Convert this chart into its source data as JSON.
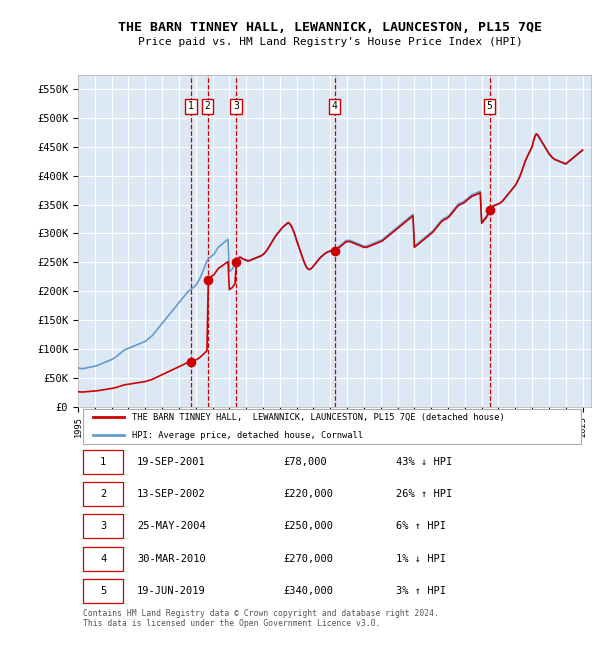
{
  "title": "THE BARN TINNEY HALL, LEWANNICK, LAUNCESTON, PL15 7QE",
  "subtitle": "Price paid vs. HM Land Registry's House Price Index (HPI)",
  "plot_bg_color": "#dce9f5",
  "ylim": [
    0,
    575000
  ],
  "yticks": [
    0,
    50000,
    100000,
    150000,
    200000,
    250000,
    300000,
    350000,
    400000,
    450000,
    500000,
    550000
  ],
  "ytick_labels": [
    "£0",
    "£50K",
    "£100K",
    "£150K",
    "£200K",
    "£250K",
    "£300K",
    "£350K",
    "£400K",
    "£450K",
    "£500K",
    "£550K"
  ],
  "xlim_start": 1995.0,
  "xlim_end": 2025.5,
  "sale_dates_x": [
    2001.72,
    2002.71,
    2004.4,
    2010.25,
    2019.47
  ],
  "sale_prices_y": [
    78000,
    220000,
    250000,
    270000,
    340000
  ],
  "sale_labels": [
    "1",
    "2",
    "3",
    "4",
    "5"
  ],
  "vline_color": "#cc0000",
  "marker_color": "#cc0000",
  "sale_line_color": "#cc0000",
  "hpi_line_color": "#6699cc",
  "legend_entries": [
    "THE BARN TINNEY HALL,  LEWANNICK, LAUNCESTON, PL15 7QE (detached house)",
    "HPI: Average price, detached house, Cornwall"
  ],
  "table_rows": [
    [
      "1",
      "19-SEP-2001",
      "£78,000",
      "43% ↓ HPI"
    ],
    [
      "2",
      "13-SEP-2002",
      "£220,000",
      "26% ↑ HPI"
    ],
    [
      "3",
      "25-MAY-2004",
      "£250,000",
      "6% ↑ HPI"
    ],
    [
      "4",
      "30-MAR-2010",
      "£270,000",
      "1% ↓ HPI"
    ],
    [
      "5",
      "19-JUN-2019",
      "£340,000",
      "3% ↑ HPI"
    ]
  ],
  "footnote": "Contains HM Land Registry data © Crown copyright and database right 2024.\nThis data is licensed under the Open Government Licence v3.0.",
  "hpi_x": [
    1995.0,
    1995.083,
    1995.167,
    1995.25,
    1995.333,
    1995.417,
    1995.5,
    1995.583,
    1995.667,
    1995.75,
    1995.833,
    1995.917,
    1996.0,
    1996.083,
    1996.167,
    1996.25,
    1996.333,
    1996.417,
    1996.5,
    1996.583,
    1996.667,
    1996.75,
    1996.833,
    1996.917,
    1997.0,
    1997.083,
    1997.167,
    1997.25,
    1997.333,
    1997.417,
    1997.5,
    1997.583,
    1997.667,
    1997.75,
    1997.833,
    1997.917,
    1998.0,
    1998.083,
    1998.167,
    1998.25,
    1998.333,
    1998.417,
    1998.5,
    1998.583,
    1998.667,
    1998.75,
    1998.833,
    1998.917,
    1999.0,
    1999.083,
    1999.167,
    1999.25,
    1999.333,
    1999.417,
    1999.5,
    1999.583,
    1999.667,
    1999.75,
    1999.833,
    1999.917,
    2000.0,
    2000.083,
    2000.167,
    2000.25,
    2000.333,
    2000.417,
    2000.5,
    2000.583,
    2000.667,
    2000.75,
    2000.833,
    2000.917,
    2001.0,
    2001.083,
    2001.167,
    2001.25,
    2001.333,
    2001.417,
    2001.5,
    2001.583,
    2001.667,
    2001.75,
    2001.833,
    2001.917,
    2002.0,
    2002.083,
    2002.167,
    2002.25,
    2002.333,
    2002.417,
    2002.5,
    2002.583,
    2002.667,
    2002.75,
    2002.833,
    2002.917,
    2003.0,
    2003.083,
    2003.167,
    2003.25,
    2003.333,
    2003.417,
    2003.5,
    2003.583,
    2003.667,
    2003.75,
    2003.833,
    2003.917,
    2004.0,
    2004.083,
    2004.167,
    2004.25,
    2004.333,
    2004.417,
    2004.5,
    2004.583,
    2004.667,
    2004.75,
    2004.833,
    2004.917,
    2005.0,
    2005.083,
    2005.167,
    2005.25,
    2005.333,
    2005.417,
    2005.5,
    2005.583,
    2005.667,
    2005.75,
    2005.833,
    2005.917,
    2006.0,
    2006.083,
    2006.167,
    2006.25,
    2006.333,
    2006.417,
    2006.5,
    2006.583,
    2006.667,
    2006.75,
    2006.833,
    2006.917,
    2007.0,
    2007.083,
    2007.167,
    2007.25,
    2007.333,
    2007.417,
    2007.5,
    2007.583,
    2007.667,
    2007.75,
    2007.833,
    2007.917,
    2008.0,
    2008.083,
    2008.167,
    2008.25,
    2008.333,
    2008.417,
    2008.5,
    2008.583,
    2008.667,
    2008.75,
    2008.833,
    2008.917,
    2009.0,
    2009.083,
    2009.167,
    2009.25,
    2009.333,
    2009.417,
    2009.5,
    2009.583,
    2009.667,
    2009.75,
    2009.833,
    2009.917,
    2010.0,
    2010.083,
    2010.167,
    2010.25,
    2010.333,
    2010.417,
    2010.5,
    2010.583,
    2010.667,
    2010.75,
    2010.833,
    2010.917,
    2011.0,
    2011.083,
    2011.167,
    2011.25,
    2011.333,
    2011.417,
    2011.5,
    2011.583,
    2011.667,
    2011.75,
    2011.833,
    2011.917,
    2012.0,
    2012.083,
    2012.167,
    2012.25,
    2012.333,
    2012.417,
    2012.5,
    2012.583,
    2012.667,
    2012.75,
    2012.833,
    2012.917,
    2013.0,
    2013.083,
    2013.167,
    2013.25,
    2013.333,
    2013.417,
    2013.5,
    2013.583,
    2013.667,
    2013.75,
    2013.833,
    2013.917,
    2014.0,
    2014.083,
    2014.167,
    2014.25,
    2014.333,
    2014.417,
    2014.5,
    2014.583,
    2014.667,
    2014.75,
    2014.833,
    2014.917,
    2015.0,
    2015.083,
    2015.167,
    2015.25,
    2015.333,
    2015.417,
    2015.5,
    2015.583,
    2015.667,
    2015.75,
    2015.833,
    2015.917,
    2016.0,
    2016.083,
    2016.167,
    2016.25,
    2016.333,
    2016.417,
    2016.5,
    2016.583,
    2016.667,
    2016.75,
    2016.833,
    2016.917,
    2017.0,
    2017.083,
    2017.167,
    2017.25,
    2017.333,
    2017.417,
    2017.5,
    2017.583,
    2017.667,
    2017.75,
    2017.833,
    2017.917,
    2018.0,
    2018.083,
    2018.167,
    2018.25,
    2018.333,
    2018.417,
    2018.5,
    2018.583,
    2018.667,
    2018.75,
    2018.833,
    2018.917,
    2019.0,
    2019.083,
    2019.167,
    2019.25,
    2019.333,
    2019.417,
    2019.5,
    2019.583,
    2019.667,
    2019.75,
    2019.833,
    2019.917,
    2020.0,
    2020.083,
    2020.167,
    2020.25,
    2020.333,
    2020.417,
    2020.5,
    2020.583,
    2020.667,
    2020.75,
    2020.833,
    2020.917,
    2021.0,
    2021.083,
    2021.167,
    2021.25,
    2021.333,
    2021.417,
    2021.5,
    2021.583,
    2021.667,
    2021.75,
    2021.833,
    2021.917,
    2022.0,
    2022.083,
    2022.167,
    2022.25,
    2022.333,
    2022.417,
    2022.5,
    2022.583,
    2022.667,
    2022.75,
    2022.833,
    2022.917,
    2023.0,
    2023.083,
    2023.167,
    2023.25,
    2023.333,
    2023.417,
    2023.5,
    2023.583,
    2023.667,
    2023.75,
    2023.833,
    2023.917,
    2024.0,
    2024.083,
    2024.167,
    2024.25,
    2024.333,
    2024.417,
    2024.5,
    2024.583,
    2024.667,
    2024.75,
    2024.833,
    2024.917,
    2025.0
  ],
  "hpi_y": [
    67000,
    66500,
    66000,
    65500,
    66000,
    66500,
    67000,
    67500,
    68000,
    68500,
    69000,
    69500,
    70000,
    70500,
    71500,
    72500,
    73500,
    74500,
    75500,
    76500,
    77500,
    78500,
    79500,
    80500,
    81500,
    83000,
    84500,
    86000,
    88000,
    90000,
    92000,
    94000,
    96000,
    98000,
    99000,
    100000,
    101000,
    102000,
    103000,
    104000,
    105000,
    106000,
    107000,
    108000,
    109000,
    110000,
    111000,
    112000,
    113000,
    115000,
    117000,
    119000,
    121000,
    123000,
    126000,
    129000,
    132000,
    135000,
    138000,
    141000,
    144000,
    147000,
    150000,
    153000,
    156000,
    159000,
    162000,
    165000,
    168000,
    171000,
    174000,
    177000,
    180000,
    183000,
    186000,
    189000,
    192000,
    195000,
    198000,
    200000,
    202000,
    204000,
    206000,
    208000,
    210000,
    214000,
    218000,
    222000,
    228000,
    234000,
    240000,
    246000,
    252000,
    256000,
    258000,
    260000,
    262000,
    264000,
    268000,
    272000,
    276000,
    278000,
    280000,
    282000,
    284000,
    286000,
    288000,
    290000,
    234000,
    236000,
    238000,
    242000,
    246000,
    250000,
    254000,
    258000,
    258000,
    256000,
    255000,
    254000,
    253000,
    252000,
    252000,
    253000,
    254000,
    255000,
    256000,
    257000,
    258000,
    259000,
    260000,
    261000,
    263000,
    265000,
    268000,
    271000,
    275000,
    279000,
    283000,
    287000,
    291000,
    295000,
    298000,
    301000,
    304000,
    307000,
    310000,
    312000,
    314000,
    316000,
    318000,
    316000,
    313000,
    308000,
    302000,
    295000,
    287000,
    280000,
    273000,
    266000,
    259000,
    252000,
    246000,
    241000,
    238000,
    237000,
    238000,
    240000,
    243000,
    246000,
    249000,
    252000,
    255000,
    258000,
    260000,
    262000,
    264000,
    266000,
    267000,
    268000,
    269000,
    270000,
    271000,
    272000,
    273000,
    275000,
    277000,
    279000,
    281000,
    283000,
    285000,
    287000,
    288000,
    288000,
    288000,
    287000,
    286000,
    285000,
    284000,
    283000,
    282000,
    281000,
    280000,
    279000,
    278000,
    278000,
    278000,
    279000,
    280000,
    281000,
    282000,
    283000,
    284000,
    285000,
    286000,
    287000,
    288000,
    289000,
    291000,
    293000,
    295000,
    297000,
    299000,
    301000,
    303000,
    305000,
    307000,
    309000,
    311000,
    313000,
    315000,
    317000,
    319000,
    321000,
    323000,
    325000,
    327000,
    329000,
    331000,
    333000,
    278000,
    280000,
    282000,
    284000,
    286000,
    288000,
    290000,
    292000,
    294000,
    296000,
    298000,
    300000,
    302000,
    304000,
    307000,
    310000,
    313000,
    316000,
    319000,
    322000,
    324000,
    326000,
    327000,
    328000,
    330000,
    332000,
    335000,
    338000,
    341000,
    344000,
    347000,
    350000,
    352000,
    353000,
    354000,
    355000,
    357000,
    359000,
    361000,
    363000,
    365000,
    367000,
    368000,
    369000,
    370000,
    371000,
    372000,
    373000,
    320000,
    323000,
    326000,
    329000,
    333000,
    337000,
    341000,
    345000,
    347000,
    348000,
    349000,
    350000,
    351000,
    352000,
    354000,
    356000,
    359000,
    362000,
    365000,
    368000,
    371000,
    374000,
    377000,
    380000,
    383000,
    387000,
    392000,
    397000,
    403000,
    410000,
    417000,
    424000,
    430000,
    435000,
    440000,
    445000,
    450000,
    460000,
    468000,
    472000,
    470000,
    466000,
    462000,
    458000,
    454000,
    450000,
    446000,
    442000,
    438000,
    435000,
    432000,
    430000,
    428000,
    427000,
    426000,
    425000,
    424000,
    423000,
    422000,
    421000,
    420000,
    422000,
    424000,
    426000,
    428000,
    430000,
    432000,
    434000,
    436000,
    438000,
    440000,
    442000,
    444000,
    446000,
    448000,
    450000,
    452000,
    454000,
    456000,
    458000,
    460000,
    462000,
    464000,
    466000,
    440000
  ]
}
